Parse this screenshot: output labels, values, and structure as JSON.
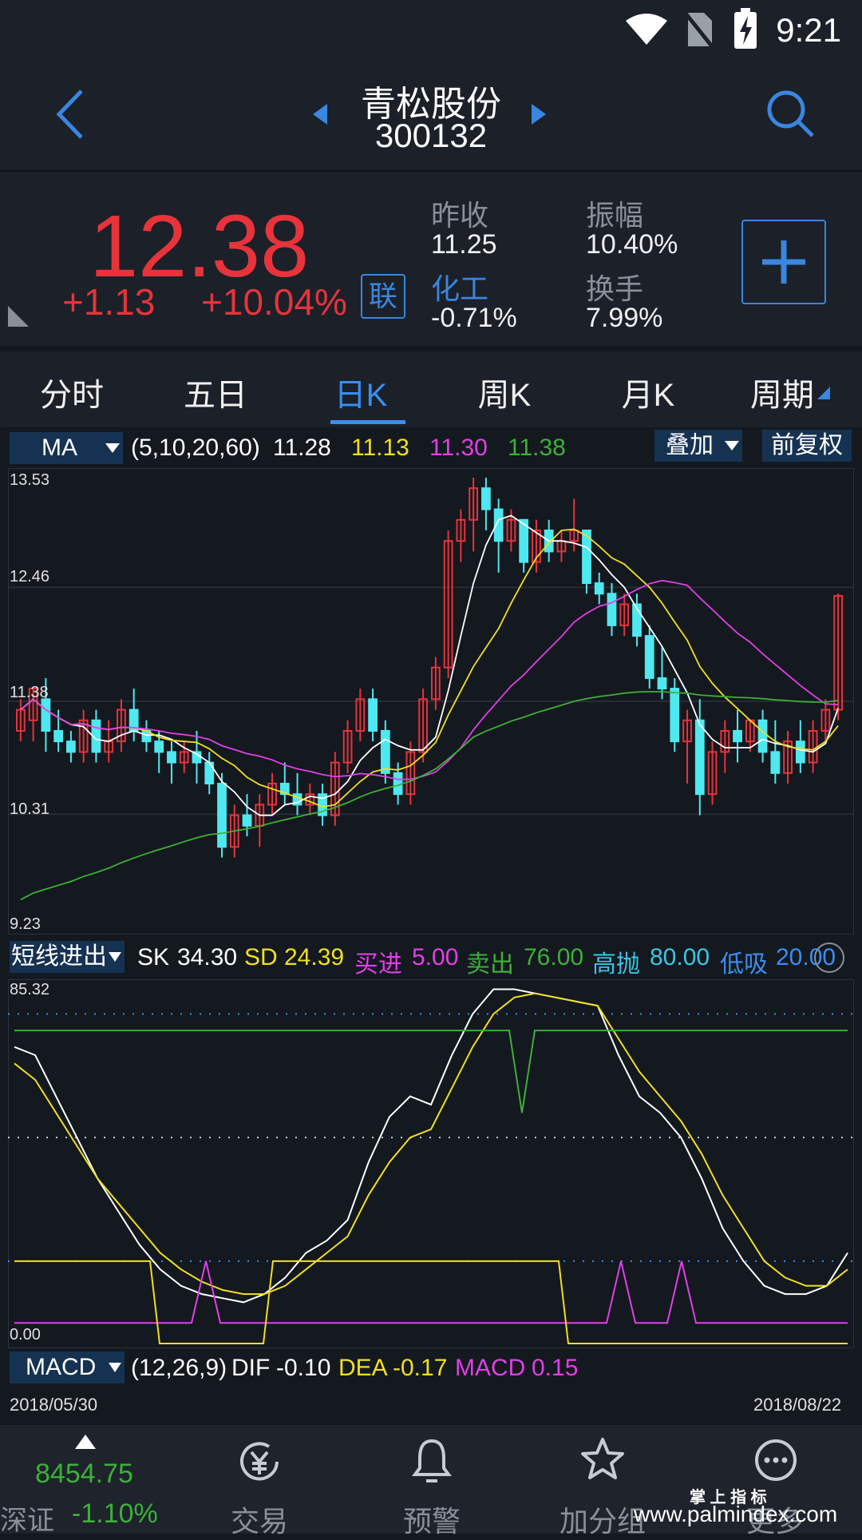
{
  "status_bar": {
    "time": "9:21"
  },
  "header": {
    "stock_name": "青松股份",
    "stock_code": "300132"
  },
  "quote": {
    "price": "12.38",
    "change": "+1.13",
    "change_pct": "+10.04%",
    "lian_badge": "联",
    "prev_close_label": "昨收",
    "prev_close": "11.25",
    "amplitude_label": "振幅",
    "amplitude": "10.40%",
    "sector_label": "化工",
    "sector_change": "-0.71%",
    "turnover_label": "换手",
    "turnover": "7.99%"
  },
  "tabs": [
    "分时",
    "五日",
    "日K",
    "周K",
    "月K",
    "周期"
  ],
  "active_tab": "日K",
  "ma_bar": {
    "selector": "MA",
    "params": "(5,10,20,60)",
    "ma5": "11.28",
    "ma10": "11.13",
    "ma20": "11.30",
    "ma60": "11.38",
    "overlay": "叠加",
    "adjust": "前复权"
  },
  "sk_bar": {
    "selector": "短线进出",
    "sk_label": "SK",
    "sk": "34.30",
    "sd_label": "SD",
    "sd": "24.39",
    "buy_label": "买进",
    "buy": "5.00",
    "sell_label": "卖出",
    "sell": "76.00",
    "high_label": "高抛",
    "high": "80.00",
    "low_label": "低吸",
    "low": "20.00"
  },
  "macd_bar": {
    "selector": "MACD",
    "params": "(12,26,9)",
    "dif_label": "DIF",
    "dif": "-0.10",
    "dea_label": "DEA",
    "dea": "-0.17",
    "macd_label": "MACD",
    "macd": "0.15"
  },
  "dates": {
    "start": "2018/05/30",
    "end": "2018/08/22"
  },
  "bottom_nav": {
    "index_value": "8454.75",
    "index_name": "深证",
    "index_change": "-1.10%",
    "items": [
      "交易",
      "预警",
      "加分组",
      "更多"
    ]
  },
  "watermark": {
    "line1": "掌 上 指 标",
    "line2": "www.palmindex.com"
  },
  "colors": {
    "up": "#e8333b",
    "down": "#4ee8f0",
    "ma5": "#ffffff",
    "ma10": "#f0e020",
    "ma20": "#e040e8",
    "ma60": "#3cb038",
    "accent": "#3a8ef0"
  },
  "chart_data": [
    {
      "type": "candlestick",
      "yticks": [
        "13.53",
        "12.46",
        "11.38",
        "10.31",
        "9.23"
      ],
      "ylim": [
        9.23,
        13.53
      ],
      "ohlc": [
        [
          11.1,
          11.4,
          11.0,
          11.3
        ],
        [
          11.2,
          11.5,
          11.0,
          11.5
        ],
        [
          11.4,
          11.6,
          10.9,
          11.1
        ],
        [
          11.1,
          11.3,
          10.9,
          11.0
        ],
        [
          11.0,
          11.1,
          10.8,
          10.9
        ],
        [
          10.9,
          11.3,
          10.8,
          11.2
        ],
        [
          11.2,
          11.3,
          10.8,
          10.9
        ],
        [
          10.9,
          11.2,
          10.8,
          11.0
        ],
        [
          11.0,
          11.4,
          10.9,
          11.3
        ],
        [
          11.3,
          11.5,
          11.0,
          11.1
        ],
        [
          11.1,
          11.2,
          10.9,
          11.0
        ],
        [
          11.0,
          11.1,
          10.7,
          10.9
        ],
        [
          10.9,
          11.0,
          10.6,
          10.8
        ],
        [
          10.8,
          11.0,
          10.7,
          10.9
        ],
        [
          10.9,
          11.1,
          10.6,
          10.8
        ],
        [
          10.8,
          10.9,
          10.5,
          10.6
        ],
        [
          10.6,
          10.7,
          9.9,
          10.0
        ],
        [
          10.0,
          10.4,
          9.9,
          10.3
        ],
        [
          10.3,
          10.5,
          10.1,
          10.2
        ],
        [
          10.2,
          10.5,
          10.0,
          10.4
        ],
        [
          10.4,
          10.7,
          10.3,
          10.6
        ],
        [
          10.6,
          10.8,
          10.4,
          10.5
        ],
        [
          10.5,
          10.7,
          10.3,
          10.4
        ],
        [
          10.4,
          10.6,
          10.3,
          10.5
        ],
        [
          10.5,
          10.6,
          10.2,
          10.3
        ],
        [
          10.3,
          10.9,
          10.2,
          10.8
        ],
        [
          10.8,
          11.2,
          10.7,
          11.1
        ],
        [
          11.1,
          11.5,
          11.0,
          11.4
        ],
        [
          11.4,
          11.5,
          11.0,
          11.1
        ],
        [
          11.1,
          11.2,
          10.6,
          10.7
        ],
        [
          10.7,
          10.8,
          10.4,
          10.5
        ],
        [
          10.5,
          11.0,
          10.4,
          10.9
        ],
        [
          10.9,
          11.5,
          10.8,
          11.4
        ],
        [
          11.4,
          11.8,
          11.3,
          11.7
        ],
        [
          11.7,
          13.0,
          11.6,
          12.9
        ],
        [
          12.9,
          13.2,
          12.7,
          13.1
        ],
        [
          13.1,
          13.5,
          12.8,
          13.4
        ],
        [
          13.4,
          13.5,
          13.0,
          13.2
        ],
        [
          13.2,
          13.3,
          12.6,
          12.9
        ],
        [
          12.9,
          13.2,
          12.8,
          13.1
        ],
        [
          13.1,
          13.1,
          12.6,
          12.7
        ],
        [
          12.7,
          13.1,
          12.6,
          13.0
        ],
        [
          13.0,
          13.1,
          12.7,
          12.8
        ],
        [
          12.8,
          13.0,
          12.7,
          12.9
        ],
        [
          12.9,
          13.3,
          12.8,
          13.0
        ],
        [
          13.0,
          13.0,
          12.4,
          12.5
        ],
        [
          12.5,
          12.6,
          12.3,
          12.4
        ],
        [
          12.4,
          12.5,
          12.0,
          12.1
        ],
        [
          12.1,
          12.4,
          12.0,
          12.3
        ],
        [
          12.3,
          12.4,
          11.9,
          12.0
        ],
        [
          12.0,
          12.1,
          11.5,
          11.6
        ],
        [
          11.6,
          11.9,
          11.4,
          11.5
        ],
        [
          11.5,
          11.6,
          10.9,
          11.0
        ],
        [
          11.0,
          11.3,
          10.6,
          11.2
        ],
        [
          11.2,
          11.4,
          10.3,
          10.5
        ],
        [
          10.5,
          11.0,
          10.4,
          10.9
        ],
        [
          10.9,
          11.2,
          10.7,
          11.1
        ],
        [
          11.1,
          11.3,
          10.8,
          11.0
        ],
        [
          11.0,
          11.2,
          10.9,
          11.2
        ],
        [
          11.2,
          11.3,
          10.8,
          10.9
        ],
        [
          10.9,
          11.2,
          10.6,
          10.7
        ],
        [
          10.7,
          11.1,
          10.6,
          11.0
        ],
        [
          11.0,
          11.2,
          10.7,
          10.8
        ],
        [
          10.8,
          11.2,
          10.7,
          11.1
        ],
        [
          11.1,
          11.4,
          11.0,
          11.3
        ],
        [
          11.3,
          12.4,
          11.2,
          12.38
        ]
      ]
    },
    {
      "type": "line",
      "yticks": [
        "85.32",
        "0.00"
      ],
      "ylim": [
        0,
        85.32
      ]
    }
  ]
}
